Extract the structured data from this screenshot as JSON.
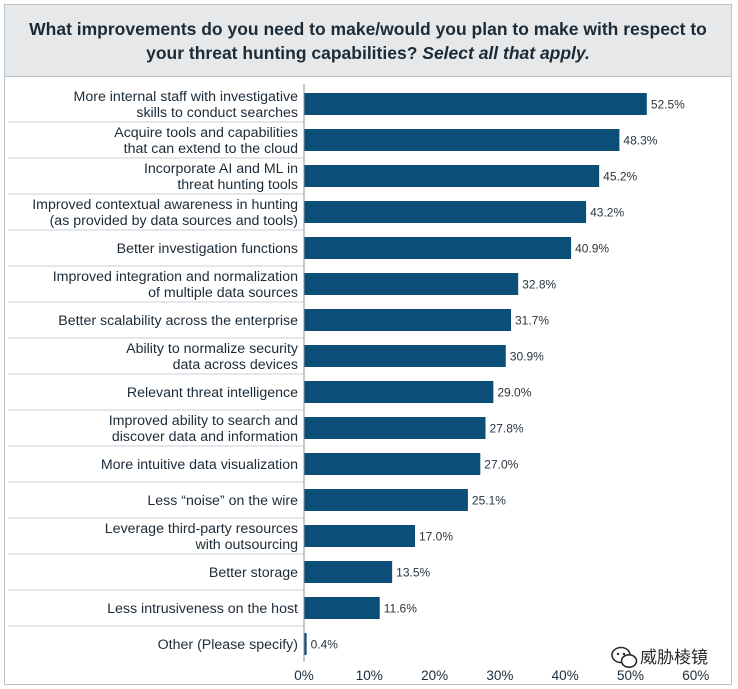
{
  "title": {
    "line1": "What improvements do you need to make/would you plan to make with respect to",
    "line2_main": "your threat hunting capabilities?",
    "line2_italic": "Select all that apply."
  },
  "watermark": {
    "text": "威胁棱镜"
  },
  "chart_data": {
    "type": "bar",
    "orientation": "horizontal",
    "categories": [
      [
        "More internal staff with investigative",
        "skills to conduct searches"
      ],
      [
        "Acquire tools and capabilities",
        "that can extend to the cloud"
      ],
      [
        "Incorporate AI and ML in",
        "threat hunting tools"
      ],
      [
        "Improved contextual awareness in hunting",
        "(as provided by data sources and tools)"
      ],
      [
        "Better investigation functions"
      ],
      [
        "Improved integration and normalization",
        "of multiple data sources"
      ],
      [
        "Better scalability across the enterprise"
      ],
      [
        "Ability to normalize security",
        "data across devices"
      ],
      [
        "Relevant threat intelligence"
      ],
      [
        "Improved ability to search and",
        "discover data and information"
      ],
      [
        "More intuitive data visualization"
      ],
      [
        "Less “noise” on the wire"
      ],
      [
        "Leverage third-party resources",
        "with outsourcing"
      ],
      [
        "Better storage"
      ],
      [
        "Less intrusiveness on the host"
      ],
      [
        "Other (Please specify)"
      ]
    ],
    "values": [
      52.5,
      48.3,
      45.2,
      43.2,
      40.9,
      32.8,
      31.7,
      30.9,
      29.0,
      27.8,
      27.0,
      25.1,
      17.0,
      13.5,
      11.6,
      0.4
    ],
    "value_labels": [
      "52.5%",
      "48.3%",
      "45.2%",
      "43.2%",
      "40.9%",
      "32.8%",
      "31.7%",
      "30.9%",
      "29.0%",
      "27.8%",
      "27.0%",
      "25.1%",
      "17.0%",
      "13.5%",
      "11.6%",
      "0.4%"
    ],
    "xlim": [
      0,
      60
    ],
    "xticks": [
      0,
      10,
      20,
      30,
      40,
      50,
      60
    ],
    "xtick_labels": [
      "0%",
      "10%",
      "20%",
      "30%",
      "40%",
      "50%",
      "60%"
    ],
    "bar_color": "#0b4f78",
    "separator_color": "#c9d1d8",
    "grid": false,
    "legend": "none"
  }
}
